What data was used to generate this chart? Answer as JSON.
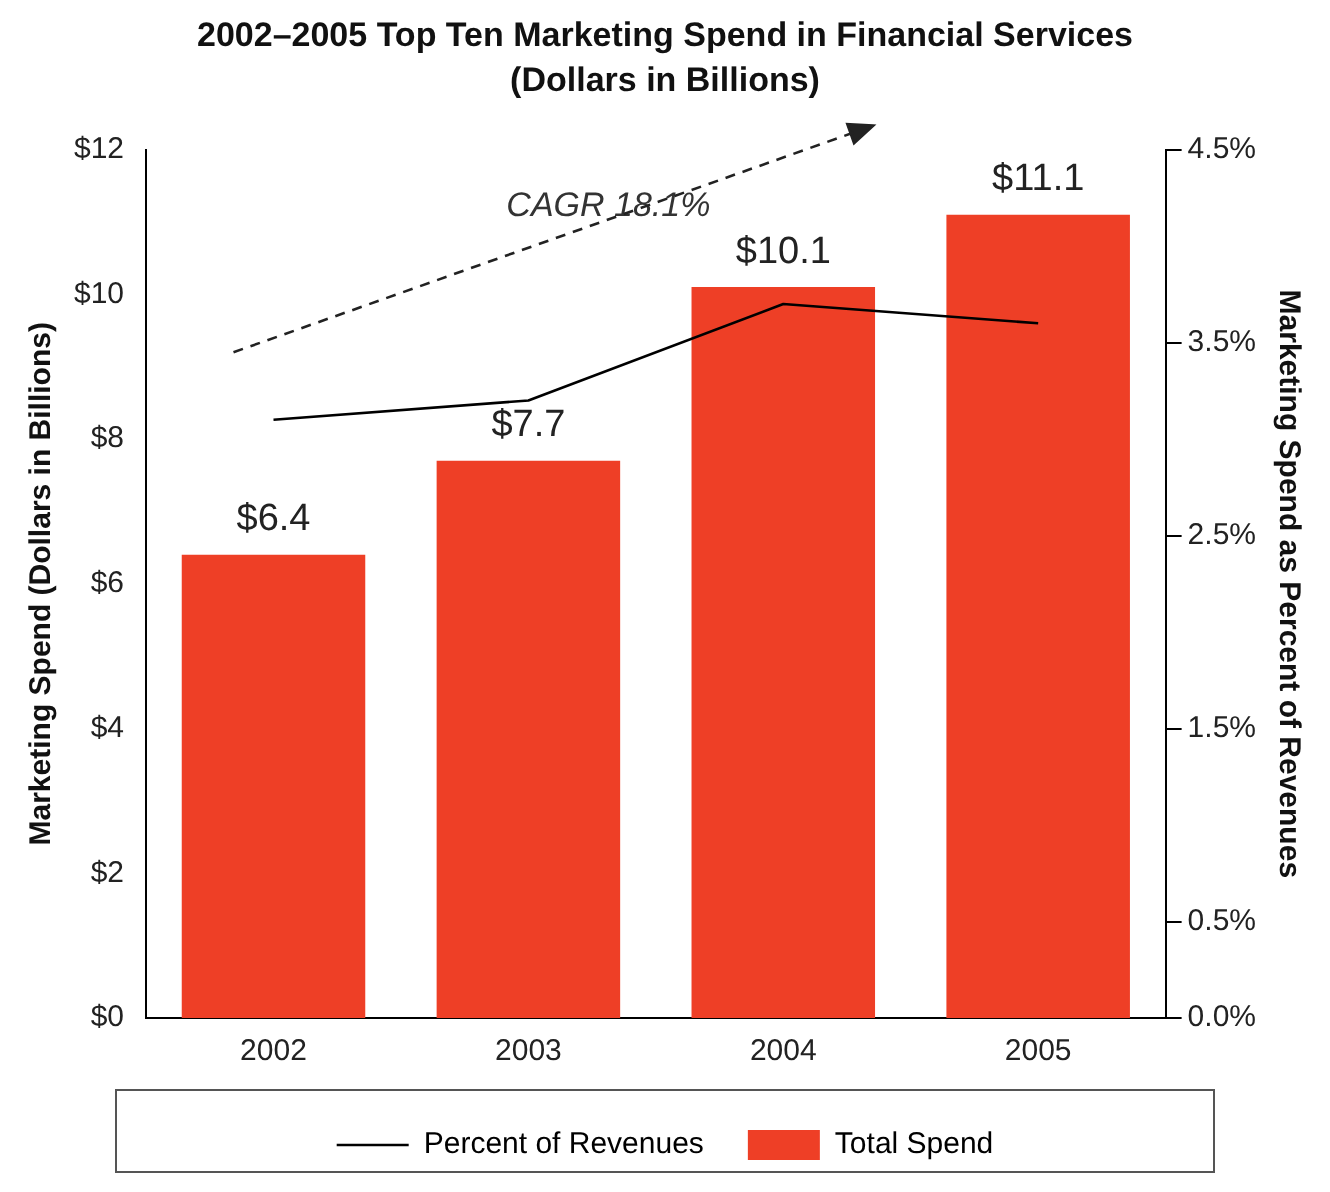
{
  "chart_data": {
    "type": "bar",
    "title": "2002–2005 Top Ten Marketing Spend in Financial Services",
    "subtitle": "(Dollars in Billions)",
    "ylabel": "Marketing Spend (Dollars in Billions)",
    "y2label": "Marketing Spend as Percent of Revenues",
    "categories": [
      "2002",
      "2003",
      "2004",
      "2005"
    ],
    "series": [
      {
        "name": "Percent of Revenues",
        "type": "line",
        "axis": "y2",
        "color": "#000000",
        "values": [
          3.1,
          3.2,
          3.7,
          3.6
        ]
      },
      {
        "name": "Total Spend",
        "color": "#ee3f26",
        "values": [
          6.4,
          7.7,
          10.1,
          11.1
        ],
        "value_labels": [
          "$6.4",
          "$7.7",
          "$10.1",
          "$11.1"
        ]
      }
    ],
    "ylim": [
      0,
      12
    ],
    "yticks": [
      {
        "value": 0,
        "label": "$0"
      },
      {
        "value": 2,
        "label": "$2"
      },
      {
        "value": 4,
        "label": "$4"
      },
      {
        "value": 6,
        "label": "$6"
      },
      {
        "value": 8,
        "label": "$8"
      },
      {
        "value": 10,
        "label": "$10"
      },
      {
        "value": 12,
        "label": "$12"
      }
    ],
    "y2lim": [
      0,
      4.5
    ],
    "y2ticks": [
      {
        "value": 0,
        "label": "0.0%"
      },
      {
        "value": 0.5,
        "label": "0.5%"
      },
      {
        "value": 1.5,
        "label": "1.5%"
      },
      {
        "value": 2.5,
        "label": "2.5%"
      },
      {
        "value": 3.5,
        "label": "3.5%"
      },
      {
        "value": 4.5,
        "label": "4.5%"
      }
    ],
    "annotations": [
      "CAGR 18.1%"
    ],
    "legend": "bottom",
    "grid": false,
    "marker": "none",
    "line_style": "solid"
  }
}
